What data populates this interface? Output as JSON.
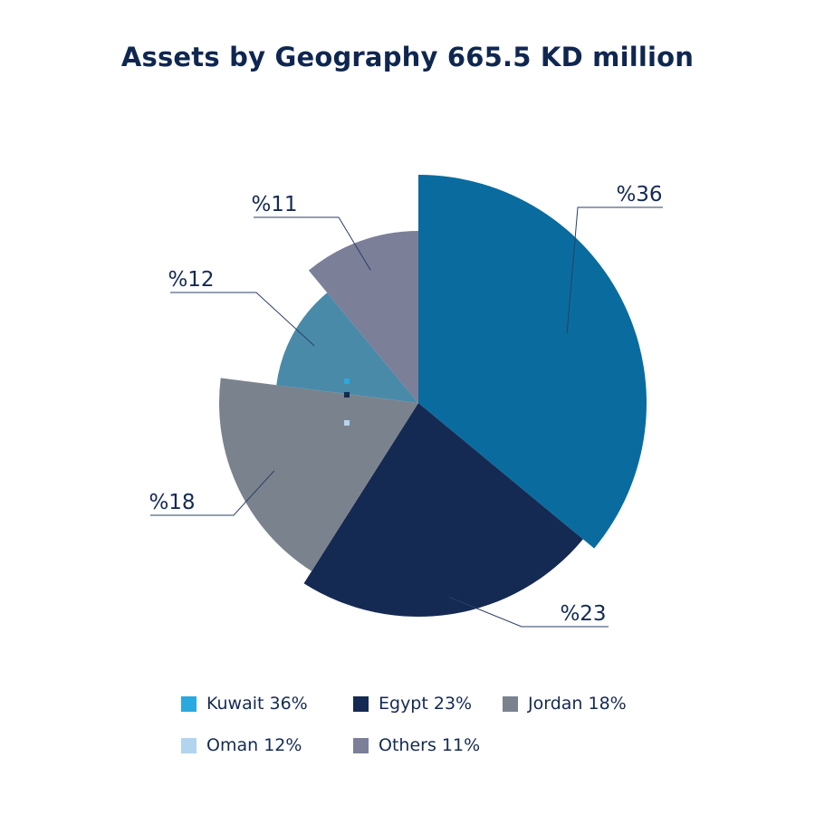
{
  "chart_data": {
    "type": "pie",
    "title": "Assets by Geography 665.5 KD million",
    "slices": [
      {
        "name": "Kuwait",
        "value": 36,
        "label": "%36",
        "color": "#0a6c9e",
        "legend_color": "#2aa8e0",
        "legend_label": "Kuwait 36%"
      },
      {
        "name": "Egypt",
        "value": 23,
        "label": "%23",
        "color": "#152a52",
        "legend_color": "#152a52",
        "legend_label": "Egypt 23%"
      },
      {
        "name": "Jordan",
        "value": 18,
        "label": "%18",
        "color": "#7a838d",
        "legend_color": "#7a838d",
        "legend_label": "Jordan 18%"
      },
      {
        "name": "Oman",
        "value": 12,
        "label": "%12",
        "color": "#4a8aa9",
        "legend_color": "#b3d4ee",
        "legend_label": "Oman 12%"
      },
      {
        "name": "Others",
        "value": 11,
        "label": "%11",
        "color": "#7b7f98",
        "legend_color": "#7b7f98",
        "legend_label": "Others 11%"
      }
    ],
    "legend_position": "bottom"
  }
}
